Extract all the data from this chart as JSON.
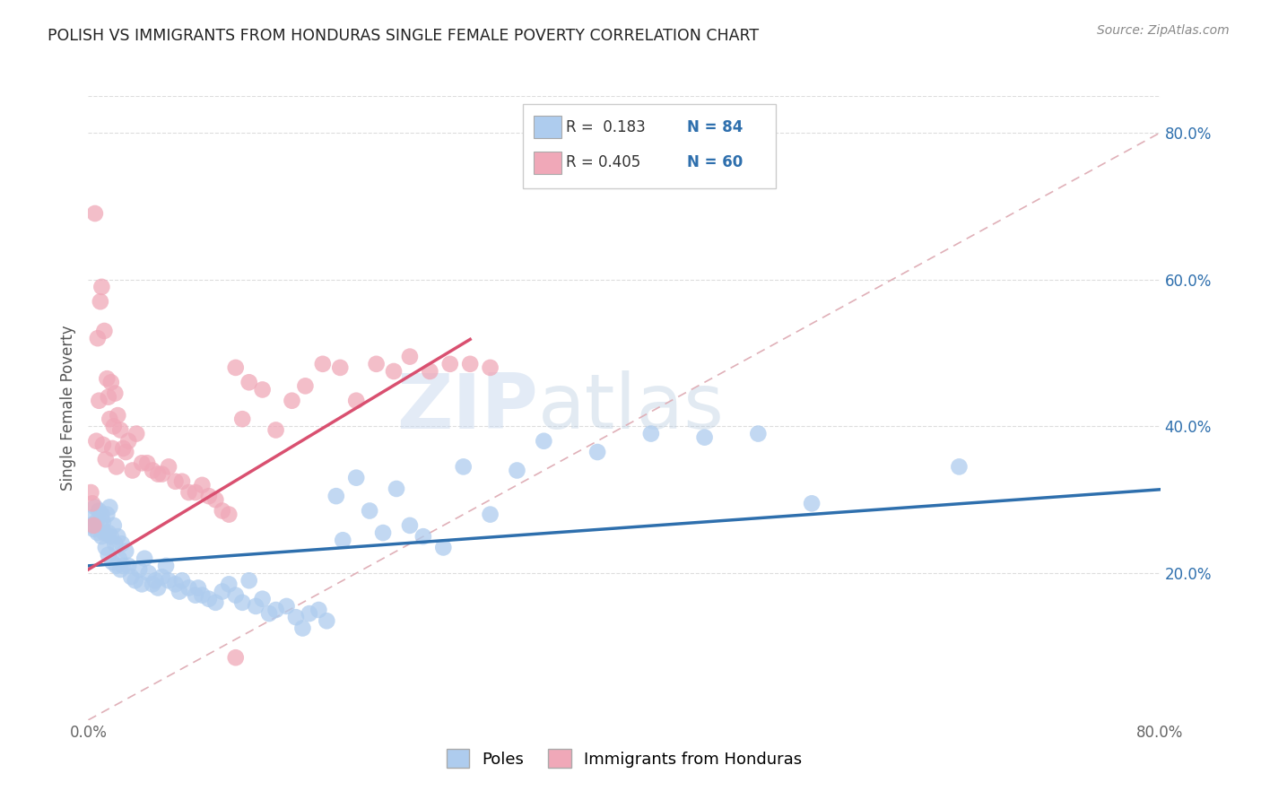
{
  "title": "POLISH VS IMMIGRANTS FROM HONDURAS SINGLE FEMALE POVERTY CORRELATION CHART",
  "source": "Source: ZipAtlas.com",
  "ylabel": "Single Female Poverty",
  "x_min": 0.0,
  "x_max": 0.8,
  "y_min": 0.0,
  "y_max": 0.85,
  "x_ticks": [
    0.0,
    0.1,
    0.2,
    0.3,
    0.4,
    0.5,
    0.6,
    0.7,
    0.8
  ],
  "y_ticks_right": [
    0.2,
    0.4,
    0.6,
    0.8
  ],
  "y_tick_labels_right": [
    "20.0%",
    "40.0%",
    "60.0%",
    "80.0%"
  ],
  "blue_color": "#aeccee",
  "pink_color": "#f0a8b8",
  "blue_line_color": "#2e6fad",
  "pink_line_color": "#d95070",
  "diag_line_color": "#e0b0b8",
  "legend_r1": "R =  0.183",
  "legend_n1": "N = 84",
  "legend_r2": "R = 0.405",
  "legend_n2": "N = 60",
  "legend_label1": "Poles",
  "legend_label2": "Immigrants from Honduras",
  "watermark_zip": "ZIP",
  "watermark_atlas": "atlas",
  "blue_intercept": 0.21,
  "blue_slope": 0.13,
  "pink_intercept": 0.205,
  "pink_slope": 1.1,
  "pink_line_x_end": 0.285,
  "poles_x": [
    0.002,
    0.003,
    0.004,
    0.005,
    0.006,
    0.007,
    0.008,
    0.009,
    0.01,
    0.01,
    0.011,
    0.012,
    0.013,
    0.014,
    0.015,
    0.015,
    0.016,
    0.017,
    0.018,
    0.019,
    0.02,
    0.021,
    0.022,
    0.023,
    0.024,
    0.025,
    0.026,
    0.028,
    0.03,
    0.032,
    0.035,
    0.038,
    0.04,
    0.042,
    0.045,
    0.048,
    0.05,
    0.052,
    0.055,
    0.058,
    0.06,
    0.065,
    0.068,
    0.07,
    0.075,
    0.08,
    0.082,
    0.085,
    0.09,
    0.095,
    0.1,
    0.105,
    0.11,
    0.115,
    0.12,
    0.125,
    0.13,
    0.135,
    0.14,
    0.148,
    0.155,
    0.16,
    0.165,
    0.172,
    0.178,
    0.185,
    0.19,
    0.2,
    0.21,
    0.22,
    0.23,
    0.24,
    0.25,
    0.265,
    0.28,
    0.3,
    0.32,
    0.34,
    0.38,
    0.42,
    0.46,
    0.5,
    0.54,
    0.65
  ],
  "poles_y": [
    0.265,
    0.275,
    0.26,
    0.29,
    0.27,
    0.255,
    0.285,
    0.265,
    0.28,
    0.25,
    0.27,
    0.255,
    0.235,
    0.28,
    0.255,
    0.225,
    0.29,
    0.25,
    0.215,
    0.265,
    0.24,
    0.21,
    0.25,
    0.22,
    0.205,
    0.24,
    0.21,
    0.23,
    0.21,
    0.195,
    0.19,
    0.205,
    0.185,
    0.22,
    0.2,
    0.185,
    0.19,
    0.18,
    0.195,
    0.21,
    0.19,
    0.185,
    0.175,
    0.19,
    0.18,
    0.17,
    0.18,
    0.17,
    0.165,
    0.16,
    0.175,
    0.185,
    0.17,
    0.16,
    0.19,
    0.155,
    0.165,
    0.145,
    0.15,
    0.155,
    0.14,
    0.125,
    0.145,
    0.15,
    0.135,
    0.305,
    0.245,
    0.33,
    0.285,
    0.255,
    0.315,
    0.265,
    0.25,
    0.235,
    0.345,
    0.28,
    0.34,
    0.38,
    0.365,
    0.39,
    0.385,
    0.39,
    0.295,
    0.345
  ],
  "honduras_x": [
    0.002,
    0.003,
    0.004,
    0.005,
    0.006,
    0.007,
    0.008,
    0.009,
    0.01,
    0.011,
    0.012,
    0.013,
    0.014,
    0.015,
    0.016,
    0.017,
    0.018,
    0.019,
    0.02,
    0.021,
    0.022,
    0.024,
    0.026,
    0.028,
    0.03,
    0.033,
    0.036,
    0.04,
    0.044,
    0.048,
    0.052,
    0.055,
    0.06,
    0.065,
    0.07,
    0.075,
    0.08,
    0.085,
    0.09,
    0.095,
    0.1,
    0.105,
    0.11,
    0.115,
    0.12,
    0.13,
    0.14,
    0.152,
    0.162,
    0.175,
    0.188,
    0.2,
    0.215,
    0.228,
    0.24,
    0.255,
    0.27,
    0.285,
    0.3,
    0.11
  ],
  "honduras_y": [
    0.31,
    0.295,
    0.265,
    0.69,
    0.38,
    0.52,
    0.435,
    0.57,
    0.59,
    0.375,
    0.53,
    0.355,
    0.465,
    0.44,
    0.41,
    0.46,
    0.37,
    0.4,
    0.445,
    0.345,
    0.415,
    0.395,
    0.37,
    0.365,
    0.38,
    0.34,
    0.39,
    0.35,
    0.35,
    0.34,
    0.335,
    0.335,
    0.345,
    0.325,
    0.325,
    0.31,
    0.31,
    0.32,
    0.305,
    0.3,
    0.285,
    0.28,
    0.48,
    0.41,
    0.46,
    0.45,
    0.395,
    0.435,
    0.455,
    0.485,
    0.48,
    0.435,
    0.485,
    0.475,
    0.495,
    0.475,
    0.485,
    0.485,
    0.48,
    0.085
  ]
}
